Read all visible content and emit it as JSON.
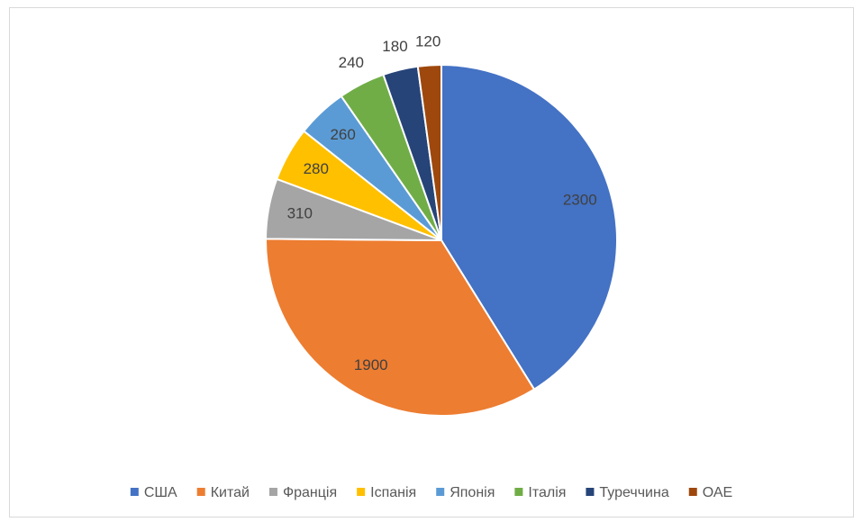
{
  "chart_data": {
    "type": "pie",
    "categories": [
      "США",
      "Китай",
      "Франція",
      "Іспанія",
      "Японія",
      "Італія",
      "Туреччина",
      "ОАЕ"
    ],
    "values": [
      2300,
      1900,
      310,
      280,
      260,
      240,
      180,
      120
    ],
    "colors": [
      "#4472c4",
      "#ed7d31",
      "#a5a5a5",
      "#ffc000",
      "#5b9bd5",
      "#70ad47",
      "#264478",
      "#9e480e"
    ],
    "legend": "bottom"
  }
}
